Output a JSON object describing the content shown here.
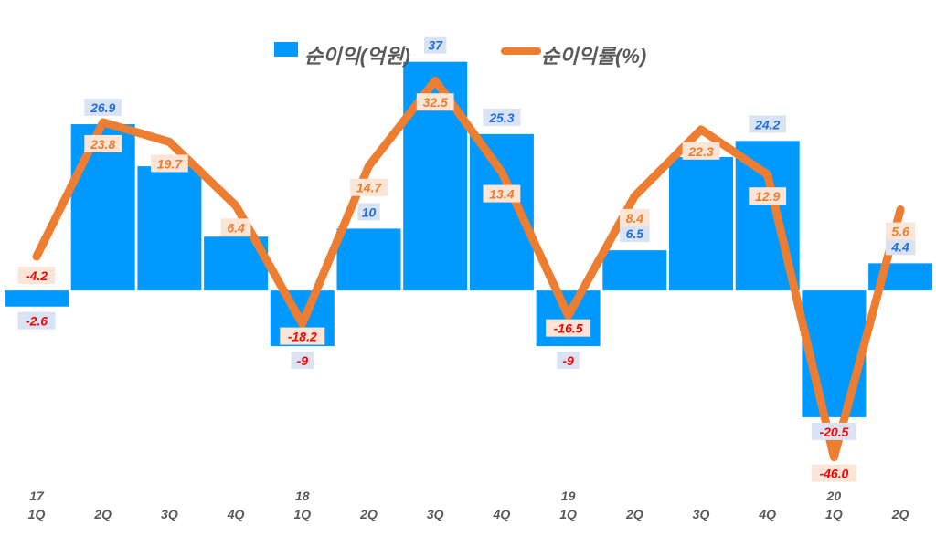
{
  "chart_data": {
    "type": "bar+line",
    "categories": [
      "1Q",
      "2Q",
      "3Q",
      "4Q",
      "1Q",
      "2Q",
      "3Q",
      "4Q",
      "1Q",
      "2Q",
      "3Q",
      "4Q",
      "1Q",
      "2Q"
    ],
    "year_labels": [
      "17",
      "",
      "",
      "",
      "18",
      "",
      "",
      "",
      "19",
      "",
      "",
      "",
      "20",
      ""
    ],
    "series": [
      {
        "name": "순이익(억원)",
        "type": "bar",
        "axis": "primary",
        "color": "#0099ff",
        "values": [
          -2.6,
          26.9,
          20.1,
          8.7,
          -9,
          10,
          37,
          25.3,
          -9,
          6.5,
          21.6,
          24.2,
          -20.5,
          4.4
        ],
        "labels": [
          "-2.6",
          "26.9",
          null,
          null,
          "-9",
          "10",
          "37",
          "25.3",
          "-9",
          "6.5",
          null,
          "24.2",
          "-20.5",
          "4.4"
        ]
      },
      {
        "name": "순이익률(%)",
        "type": "line",
        "axis": "secondary",
        "color": "#ed7d31",
        "values": [
          -4.2,
          23.8,
          19.7,
          6.4,
          -18.2,
          14.7,
          32.5,
          13.4,
          -16.5,
          8.4,
          22.3,
          12.9,
          -46.0,
          5.6
        ],
        "labels": [
          "-4.2",
          "23.8",
          "19.7",
          "6.4",
          "-18.2",
          "14.7",
          "32.5",
          "13.4",
          "-16.5",
          "8.4",
          "22.3",
          "12.9",
          "-46.0",
          "5.6"
        ]
      }
    ],
    "ylim": [
      -31.3,
      47
    ],
    "y2lim": [
      -51.6,
      49.3
    ],
    "grid": false,
    "legend": "top-center",
    "colors": {
      "positive_label": "#1f6fe5",
      "negative_label": "#ff0000",
      "line_label": "#ed7d31",
      "bar_label_bg": "#dae3f3",
      "line_label_bg": "#fbe5d6",
      "axis_text": "#595959"
    }
  }
}
